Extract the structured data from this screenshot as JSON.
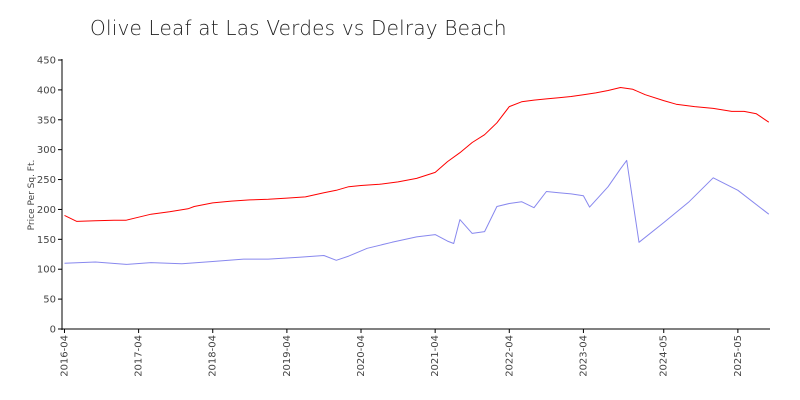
{
  "chart_data": {
    "type": "line",
    "title": "Olive Leaf at Las Verdes vs Delray Beach",
    "xlabel": "",
    "ylabel": "Price Per Sq. Ft.",
    "ylim": [
      0,
      450
    ],
    "yticks": [
      0,
      50,
      100,
      150,
      200,
      250,
      300,
      350,
      400,
      450
    ],
    "xlim": [
      "2016-04",
      "2025-10"
    ],
    "xtick_labels": [
      "2016-04",
      "2017-04",
      "2018-04",
      "2019-04",
      "2020-04",
      "2021-04",
      "2022-04",
      "2023-04",
      "2024-05",
      "2025-05"
    ],
    "grid": false,
    "series": [
      {
        "color": "#ff0000",
        "x": [
          "2016-04",
          "2016-06",
          "2016-09",
          "2016-12",
          "2017-02",
          "2017-04",
          "2017-06",
          "2017-09",
          "2017-12",
          "2018-01",
          "2018-04",
          "2018-07",
          "2018-10",
          "2019-01",
          "2019-04",
          "2019-07",
          "2019-10",
          "2019-12",
          "2020-02",
          "2020-04",
          "2020-07",
          "2020-10",
          "2021-01",
          "2021-04",
          "2021-06",
          "2021-08",
          "2021-10",
          "2021-12",
          "2022-02",
          "2022-04",
          "2022-06",
          "2022-08",
          "2022-10",
          "2022-12",
          "2023-02",
          "2023-04",
          "2023-06",
          "2023-08",
          "2023-10",
          "2023-12",
          "2024-02",
          "2024-05",
          "2024-07",
          "2024-10",
          "2025-01",
          "2025-04",
          "2025-06",
          "2025-08",
          "2025-10"
        ],
        "values": [
          190,
          180,
          181,
          182,
          182,
          187,
          192,
          196,
          201,
          205,
          211,
          214,
          216,
          217,
          219,
          221,
          228,
          232,
          238,
          240,
          242,
          246,
          252,
          262,
          280,
          295,
          312,
          325,
          345,
          372,
          380,
          383,
          385,
          387,
          389,
          392,
          395,
          399,
          404,
          401,
          392,
          382,
          376,
          372,
          369,
          364,
          364,
          360,
          346
        ]
      },
      {
        "color": "#8888ee",
        "x": [
          "2016-04",
          "2016-09",
          "2017-02",
          "2017-06",
          "2017-11",
          "2018-04",
          "2018-09",
          "2019-01",
          "2019-06",
          "2019-10",
          "2019-12",
          "2020-02",
          "2020-05",
          "2020-09",
          "2021-01",
          "2021-04",
          "2021-06",
          "2021-07",
          "2021-08",
          "2021-10",
          "2021-12",
          "2022-02",
          "2022-04",
          "2022-06",
          "2022-08",
          "2022-10",
          "2022-12",
          "2023-02",
          "2023-04",
          "2023-05",
          "2023-08",
          "2023-10",
          "2023-11",
          "2024-01",
          "2024-05",
          "2024-09",
          "2025-01",
          "2025-05",
          "2025-10"
        ],
        "values": [
          110,
          112,
          108,
          111,
          109,
          113,
          117,
          117,
          120,
          123,
          115,
          122,
          135,
          145,
          154,
          158,
          147,
          143,
          183,
          160,
          163,
          205,
          210,
          213,
          203,
          230,
          228,
          226,
          223,
          204,
          238,
          268,
          282,
          145,
          178,
          212,
          253,
          232,
          192
        ]
      }
    ]
  }
}
